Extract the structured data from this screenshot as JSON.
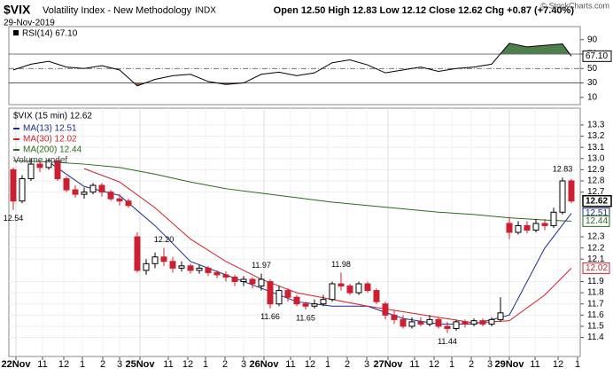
{
  "header": {
    "symbol": "$VIX",
    "name": "Volatility Index - New Methodology",
    "exchange": "INDX",
    "date": "29-Nov-2019",
    "quote": "Open 12.50  High 12.83  Low 12.12  Close 12.62  Chg +0.87 (+7.40%)",
    "credit": "© StockCharts.com"
  },
  "chart_data": [
    {
      "type": "line",
      "title": "RSI(14) 67.10",
      "color": "#000000",
      "x": [
        0.5,
        2.5,
        4.5,
        6.5,
        8.5,
        10.5,
        12.5,
        14.5,
        16.5,
        18.5,
        20.5,
        22.5,
        24.5,
        26.5,
        28.5,
        30.5,
        32.5,
        34.5,
        36.5,
        38.5,
        40.5,
        42.5,
        44.5,
        46.5,
        48.5,
        50.5,
        52.5,
        54.5,
        56.5,
        58.5,
        60.5,
        62.5,
        63.5
      ],
      "values": [
        48,
        56,
        60,
        52,
        50,
        54,
        48,
        26,
        35,
        40,
        42,
        32,
        28,
        30,
        42,
        45,
        40,
        44,
        58,
        62,
        55,
        44,
        48,
        52,
        46,
        50,
        52,
        56,
        85,
        80,
        82,
        84,
        67.1
      ],
      "value_labels": [
        null,
        null,
        null,
        null,
        null,
        null,
        null,
        null,
        null,
        null,
        null,
        null,
        null,
        null,
        null,
        null,
        null,
        null,
        null,
        null,
        null,
        null,
        null,
        null,
        null,
        null,
        null,
        null,
        null,
        null,
        null,
        null,
        "67.10"
      ],
      "xlim": [
        0,
        64.5
      ],
      "ylim": [
        0,
        108
      ],
      "yticks": [
        90,
        70,
        50,
        30,
        10
      ],
      "levels": [
        70,
        50,
        30
      ],
      "overbought_color": "#4f7f4f",
      "oversold_color": "#8a5a4c"
    },
    {
      "type": "candlestick",
      "title": "$VIX (15 min) 12.62",
      "extra_legend": "Volume undef",
      "open": [
        12.9,
        12.62,
        12.82,
        12.95,
        12.92,
        12.98,
        12.82,
        12.72,
        12.68,
        12.7,
        12.76,
        12.7,
        12.64,
        12.62,
        12.3,
        12.0,
        12.06,
        12.12,
        12.08,
        12.02,
        12.04,
        12.0,
        12.02,
        11.98,
        11.96,
        11.94,
        11.9,
        11.92,
        11.86,
        11.9,
        11.7,
        11.82,
        11.76,
        11.7,
        11.68,
        11.7,
        11.74,
        11.88,
        11.86,
        11.8,
        11.88,
        11.82,
        11.7,
        11.6,
        11.56,
        11.5,
        11.54,
        11.52,
        11.56,
        11.5,
        11.48,
        11.54,
        11.52,
        11.55,
        11.52,
        11.56,
        12.42,
        12.34,
        12.4,
        12.36,
        12.42,
        12.4,
        12.52,
        12.8
      ],
      "high": [
        12.92,
        12.85,
        13.0,
        12.98,
        13.0,
        12.99,
        12.84,
        12.76,
        12.74,
        12.78,
        12.78,
        12.72,
        12.68,
        12.64,
        12.34,
        12.1,
        12.16,
        12.2,
        12.12,
        12.08,
        12.06,
        12.05,
        12.04,
        12.0,
        11.99,
        11.96,
        11.95,
        11.94,
        11.97,
        11.92,
        11.86,
        11.84,
        11.78,
        11.72,
        11.74,
        11.78,
        11.9,
        11.98,
        11.88,
        11.9,
        11.9,
        11.84,
        11.72,
        11.64,
        11.6,
        11.58,
        11.58,
        11.6,
        11.58,
        11.54,
        11.56,
        11.56,
        11.57,
        11.57,
        11.58,
        11.76,
        12.48,
        12.44,
        12.44,
        12.46,
        12.46,
        12.56,
        12.83,
        12.82
      ],
      "low": [
        12.54,
        12.6,
        12.8,
        12.88,
        12.9,
        12.8,
        12.7,
        12.65,
        12.64,
        12.68,
        12.66,
        12.62,
        12.58,
        12.56,
        11.98,
        11.96,
        12.02,
        12.04,
        11.98,
        11.99,
        11.97,
        11.97,
        11.95,
        11.93,
        11.9,
        11.86,
        11.86,
        11.84,
        11.82,
        11.66,
        11.68,
        11.72,
        11.68,
        11.65,
        11.66,
        11.68,
        11.72,
        11.82,
        11.78,
        11.78,
        11.8,
        11.7,
        11.56,
        11.52,
        11.48,
        11.48,
        11.5,
        11.5,
        11.48,
        11.44,
        11.46,
        11.49,
        11.5,
        11.5,
        11.5,
        11.54,
        12.28,
        12.32,
        12.33,
        12.34,
        12.36,
        12.38,
        12.5,
        12.6
      ],
      "close": [
        12.62,
        12.82,
        12.95,
        12.92,
        12.98,
        12.82,
        12.72,
        12.68,
        12.7,
        12.76,
        12.7,
        12.64,
        12.62,
        12.58,
        12.0,
        12.06,
        12.12,
        12.08,
        12.02,
        12.04,
        12.0,
        12.02,
        11.98,
        11.96,
        11.94,
        11.9,
        11.92,
        11.88,
        11.92,
        11.7,
        11.82,
        11.76,
        11.7,
        11.68,
        11.7,
        11.74,
        11.88,
        11.86,
        11.8,
        11.88,
        11.82,
        11.72,
        11.6,
        11.56,
        11.5,
        11.54,
        11.52,
        11.56,
        11.5,
        11.48,
        11.54,
        11.52,
        11.55,
        11.52,
        11.56,
        11.62,
        12.34,
        12.4,
        12.36,
        12.42,
        12.4,
        12.52,
        12.8,
        12.62
      ],
      "up_color": "#000000",
      "down_color": "#cc1f2f",
      "series": [
        {
          "name": "MA(13) 12.51",
          "color": "#1a2a8c",
          "x": [
            0.5,
            4.5,
            8.5,
            12.5,
            16.5,
            20.5,
            24.5,
            28.5,
            32.5,
            36.5,
            40.5,
            44.5,
            48.5,
            52.5,
            56.5,
            60.5,
            63.5
          ],
          "values": [
            null,
            12.97,
            12.75,
            12.67,
            12.4,
            12.08,
            11.96,
            11.84,
            11.72,
            11.68,
            11.68,
            11.57,
            11.52,
            11.52,
            11.6,
            12.2,
            12.51
          ]
        },
        {
          "name": "MA(30) 12.02",
          "color": "#d0202a",
          "x": [
            0.5,
            4.5,
            8.5,
            12.5,
            16.5,
            20.5,
            24.5,
            28.5,
            32.5,
            36.5,
            40.5,
            44.5,
            48.5,
            52.5,
            56.5,
            60.5,
            63.5
          ],
          "values": [
            null,
            null,
            12.91,
            12.79,
            12.56,
            12.28,
            12.08,
            11.92,
            11.8,
            11.74,
            11.68,
            11.63,
            11.58,
            11.53,
            11.55,
            11.78,
            12.02
          ]
        },
        {
          "name": "MA(200) 12.44",
          "color": "#2a6a1c",
          "x": [
            0.5,
            4.5,
            8.5,
            12.5,
            16.5,
            20.5,
            24.5,
            28.5,
            32.5,
            36.5,
            40.5,
            44.5,
            48.5,
            52.5,
            56.5,
            60.5,
            63.5
          ],
          "values": [
            12.98,
            12.97,
            12.95,
            12.92,
            12.86,
            12.79,
            12.73,
            12.69,
            12.65,
            12.61,
            12.58,
            12.55,
            12.52,
            12.5,
            12.47,
            12.45,
            12.44
          ]
        }
      ],
      "annotations": [
        {
          "label": "12.54",
          "x": 0.5,
          "value": 12.54
        },
        {
          "label": "12.20",
          "x": 17.5,
          "value": 12.2
        },
        {
          "label": "11.97",
          "x": 28.5,
          "value": 11.97
        },
        {
          "label": "11.66",
          "x": 29.5,
          "value": 11.66
        },
        {
          "label": "11.65",
          "x": 33.5,
          "value": 11.65
        },
        {
          "label": "11.98",
          "x": 37.5,
          "value": 11.98
        },
        {
          "label": "11.44",
          "x": 49.5,
          "value": 11.44
        },
        {
          "label": "12.83",
          "x": 62.5,
          "value": 12.83
        }
      ],
      "xlim": [
        0,
        64.5
      ],
      "ylim": [
        11.23,
        13.45
      ],
      "yticks": [
        13.3,
        13.2,
        13.1,
        {
          "value": 13,
          "label": "13.0"
        },
        12.9,
        12.8,
        12.7,
        12.3,
        12.2,
        12.1,
        11.9,
        11.8,
        11.7,
        11.6,
        11.5,
        11.4
      ],
      "xticks": [
        {
          "value": 0.8,
          "label": "22Nov"
        },
        {
          "value": 3.8,
          "label": "11"
        },
        {
          "value": 6.2,
          "label": "12"
        },
        {
          "value": 8.3,
          "label": "1"
        },
        {
          "value": 10.6,
          "label": "2"
        },
        {
          "value": 12.5,
          "label": "3"
        },
        {
          "value": 14.8,
          "label": "25Nov"
        },
        {
          "value": 18,
          "label": "11"
        },
        {
          "value": 20.2,
          "label": "12"
        },
        {
          "value": 22.2,
          "label": "1"
        },
        {
          "value": 24.4,
          "label": "2"
        },
        {
          "value": 26.5,
          "label": "3"
        },
        {
          "value": 28.8,
          "label": "26Nov"
        },
        {
          "value": 31.8,
          "label": "11"
        },
        {
          "value": 34,
          "label": "12"
        },
        {
          "value": 36,
          "label": "1"
        },
        {
          "value": 38.2,
          "label": "2"
        },
        {
          "value": 40.4,
          "label": "3"
        },
        {
          "value": 42.8,
          "label": "27Nov"
        },
        {
          "value": 45.8,
          "label": "11"
        },
        {
          "value": 48,
          "label": "12"
        },
        {
          "value": 50,
          "label": "1"
        },
        {
          "value": 52.2,
          "label": "2"
        },
        {
          "value": 54.3,
          "label": "3"
        },
        {
          "value": 56.5,
          "label": "29Nov"
        },
        {
          "value": 59.4,
          "label": "11"
        },
        {
          "value": 62,
          "label": "12"
        },
        {
          "value": 64.2,
          "label": "1"
        }
      ],
      "grid": true
    }
  ]
}
